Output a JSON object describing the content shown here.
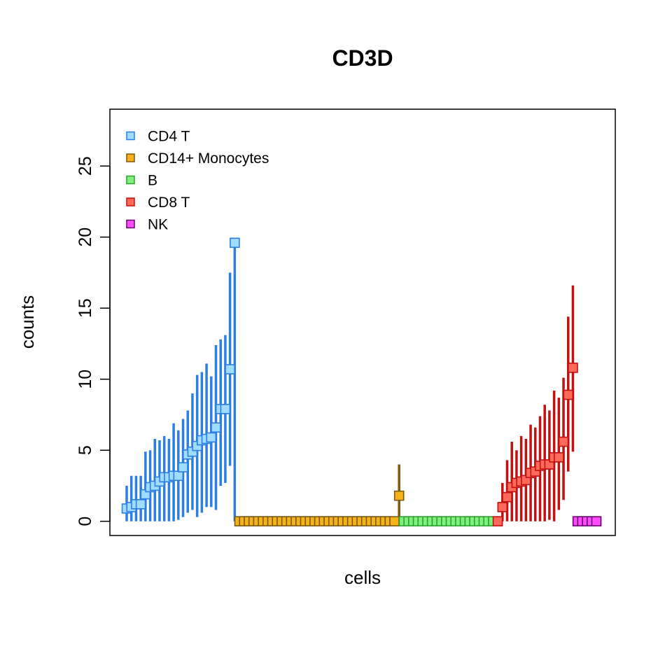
{
  "chart_data": {
    "type": "scatter",
    "title": "CD3D",
    "xlabel": "cells",
    "ylabel": "counts",
    "ylim": [
      -1,
      29
    ],
    "yticks": [
      0,
      5,
      10,
      15,
      20,
      25
    ],
    "grid": false,
    "legend_position": "top-left",
    "series": [
      {
        "name": "CD4 T",
        "fill": "#9fdcff",
        "stroke": "#2a7ee6",
        "points": [
          {
            "y": 0.9,
            "lo": 0.0,
            "hi": 2.5
          },
          {
            "y": 1.0,
            "lo": 0.0,
            "hi": 3.2
          },
          {
            "y": 1.2,
            "lo": 0.0,
            "hi": 3.2
          },
          {
            "y": 1.2,
            "lo": 0.0,
            "hi": 3.2
          },
          {
            "y": 1.9,
            "lo": 0.0,
            "hi": 4.9
          },
          {
            "y": 2.4,
            "lo": 0.0,
            "hi": 5.0
          },
          {
            "y": 2.5,
            "lo": 0.0,
            "hi": 5.8
          },
          {
            "y": 2.8,
            "lo": 0.0,
            "hi": 5.7
          },
          {
            "y": 3.1,
            "lo": 0.0,
            "hi": 6.0
          },
          {
            "y": 3.1,
            "lo": 0.0,
            "hi": 5.8
          },
          {
            "y": 3.2,
            "lo": 0.0,
            "hi": 6.9
          },
          {
            "y": 3.2,
            "lo": 0.1,
            "hi": 6.4
          },
          {
            "y": 3.8,
            "lo": 0.3,
            "hi": 7.2
          },
          {
            "y": 4.7,
            "lo": 0.6,
            "hi": 7.8
          },
          {
            "y": 4.9,
            "lo": 0.8,
            "hi": 9.0
          },
          {
            "y": 5.3,
            "lo": 0.3,
            "hi": 10.3
          },
          {
            "y": 5.7,
            "lo": 0.6,
            "hi": 10.5
          },
          {
            "y": 5.8,
            "lo": 1.0,
            "hi": 11.1
          },
          {
            "y": 5.9,
            "lo": 1.0,
            "hi": 10.2
          },
          {
            "y": 6.6,
            "lo": 0.8,
            "hi": 12.4
          },
          {
            "y": 7.9,
            "lo": 2.5,
            "hi": 12.8
          },
          {
            "y": 7.9,
            "lo": 2.7,
            "hi": 13.1
          },
          {
            "y": 10.7,
            "lo": 3.9,
            "hi": 17.5
          },
          {
            "y": 19.6,
            "lo": 0.0,
            "hi": 19.6
          }
        ]
      },
      {
        "name": "CD14+ Monocytes",
        "fill": "#f7b21a",
        "stroke": "#7a5a10",
        "points": [
          {
            "y": 0
          },
          {
            "y": 0
          },
          {
            "y": 0
          },
          {
            "y": 0
          },
          {
            "y": 0
          },
          {
            "y": 0
          },
          {
            "y": 0
          },
          {
            "y": 0
          },
          {
            "y": 0
          },
          {
            "y": 0
          },
          {
            "y": 0
          },
          {
            "y": 0
          },
          {
            "y": 0
          },
          {
            "y": 0
          },
          {
            "y": 0
          },
          {
            "y": 0
          },
          {
            "y": 0
          },
          {
            "y": 0
          },
          {
            "y": 0
          },
          {
            "y": 0
          },
          {
            "y": 0
          },
          {
            "y": 0
          },
          {
            "y": 0
          },
          {
            "y": 0
          },
          {
            "y": 0
          },
          {
            "y": 0
          },
          {
            "y": 0
          },
          {
            "y": 0
          },
          {
            "y": 0
          },
          {
            "y": 0
          },
          {
            "y": 0
          },
          {
            "y": 0
          },
          {
            "y": 0
          },
          {
            "y": 0
          },
          {
            "y": 1.8,
            "lo": 0.0,
            "hi": 4.0
          }
        ]
      },
      {
        "name": "B",
        "fill": "#7ef07e",
        "stroke": "#2ea02e",
        "points": [
          {
            "y": 0
          },
          {
            "y": 0
          },
          {
            "y": 0
          },
          {
            "y": 0
          },
          {
            "y": 0
          },
          {
            "y": 0
          },
          {
            "y": 0
          },
          {
            "y": 0
          },
          {
            "y": 0
          },
          {
            "y": 0
          },
          {
            "y": 0
          },
          {
            "y": 0
          },
          {
            "y": 0
          },
          {
            "y": 0
          },
          {
            "y": 0
          },
          {
            "y": 0
          },
          {
            "y": 0
          },
          {
            "y": 0
          },
          {
            "y": 0
          },
          {
            "y": 0
          }
        ]
      },
      {
        "name": "CD8 T",
        "fill": "#ff6a5a",
        "stroke": "#c41010",
        "points": [
          {
            "y": 0.0,
            "lo": 0.0,
            "hi": 0.0
          },
          {
            "y": 1.0,
            "lo": 0.0,
            "hi": 2.7
          },
          {
            "y": 1.7,
            "lo": 0.0,
            "hi": 4.3
          },
          {
            "y": 2.4,
            "lo": 0.0,
            "hi": 5.6
          },
          {
            "y": 2.7,
            "lo": 0.0,
            "hi": 5.0
          },
          {
            "y": 2.8,
            "lo": 0.0,
            "hi": 6.0
          },
          {
            "y": 2.9,
            "lo": 0.0,
            "hi": 5.8
          },
          {
            "y": 3.4,
            "lo": 0.0,
            "hi": 6.8
          },
          {
            "y": 3.5,
            "lo": 0.0,
            "hi": 6.6
          },
          {
            "y": 3.9,
            "lo": 0.0,
            "hi": 7.4
          },
          {
            "y": 4.0,
            "lo": 0.0,
            "hi": 8.2
          },
          {
            "y": 4.0,
            "lo": 0.1,
            "hi": 7.8
          },
          {
            "y": 4.5,
            "lo": 0.0,
            "hi": 9.2
          },
          {
            "y": 4.5,
            "lo": 0.8,
            "hi": 8.7
          },
          {
            "y": 5.6,
            "lo": 1.5,
            "hi": 10.1
          },
          {
            "y": 8.9,
            "lo": 3.5,
            "hi": 14.4
          },
          {
            "y": 10.8,
            "lo": 4.9,
            "hi": 16.6
          }
        ]
      },
      {
        "name": "NK",
        "fill": "#ff4cff",
        "stroke": "#6a006a",
        "points": [
          {
            "y": 0
          },
          {
            "y": 0
          },
          {
            "y": 0
          },
          {
            "y": 0
          },
          {
            "y": 0
          }
        ]
      }
    ]
  }
}
